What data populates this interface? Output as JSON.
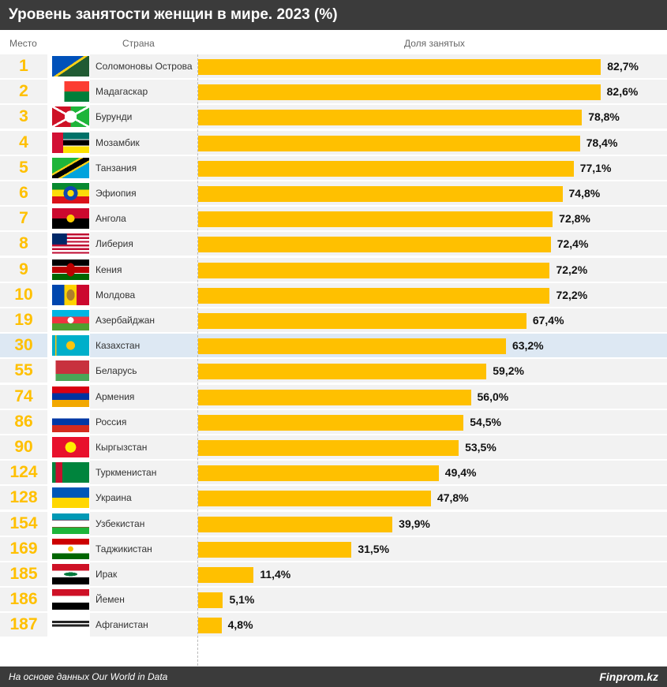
{
  "header": {
    "title": "Уровень занятости женщин в мире. 2023 (%)"
  },
  "columns": {
    "rank": "Место",
    "country": "Страна",
    "share": "Доля занятых"
  },
  "footer": {
    "source": "На основе данных Our World in Data",
    "brand": "Finprom.kz"
  },
  "chart_data": {
    "type": "bar",
    "title": "Уровень занятости женщин в мире. 2023 (%)",
    "xlabel": "Доля занятых",
    "ylabel": "Страна",
    "xlim": [
      0,
      100
    ],
    "highlight": "Казахстан",
    "ranks": [
      "1",
      "2",
      "3",
      "4",
      "5",
      "6",
      "7",
      "8",
      "9",
      "10",
      "19",
      "30",
      "55",
      "74",
      "86",
      "90",
      "124",
      "128",
      "154",
      "169",
      "185",
      "186",
      "187"
    ],
    "categories": [
      "Соломоновы Острова",
      "Мадагаскар",
      "Бурунди",
      "Мозамбик",
      "Танзания",
      "Эфиопия",
      "Ангола",
      "Либерия",
      "Кения",
      "Молдова",
      "Азербайджан",
      "Казахстан",
      "Беларусь",
      "Армения",
      "Россия",
      "Кыргызстан",
      "Туркменистан",
      "Украина",
      "Узбекистан",
      "Таджикистан",
      "Ирак",
      "Йемен",
      "Афганистан"
    ],
    "values": [
      82.7,
      82.6,
      78.8,
      78.4,
      77.1,
      74.8,
      72.8,
      72.4,
      72.2,
      72.2,
      67.4,
      63.2,
      59.2,
      56.0,
      54.5,
      53.5,
      49.4,
      47.8,
      39.9,
      31.5,
      11.4,
      5.1,
      4.8
    ],
    "labels": [
      "82,7%",
      "82,6%",
      "78,8%",
      "78,4%",
      "77,1%",
      "74,8%",
      "72,8%",
      "72,4%",
      "72,2%",
      "72,2%",
      "67,4%",
      "63,2%",
      "59,2%",
      "56,0%",
      "54,5%",
      "53,5%",
      "49,4%",
      "47,8%",
      "39,9%",
      "31,5%",
      "11,4%",
      "5,1%",
      "4,8%"
    ]
  }
}
